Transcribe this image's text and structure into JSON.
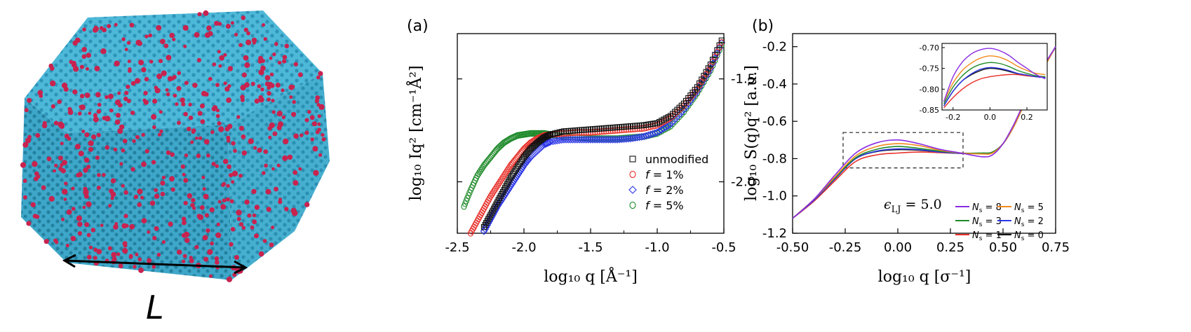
{
  "cube": {
    "length_label": "L",
    "colors": {
      "matrix": "#3aa9cc",
      "particle": "#c8234f"
    }
  },
  "chart_data": [
    {
      "panel_label": "(a)",
      "type": "scatter",
      "xlabel": "log₁₀ q  [Å⁻¹]",
      "ylabel": "log₁₀ Iq²  [cm⁻¹Å²]",
      "xlim": [
        -2.5,
        -0.5
      ],
      "ylim": [
        -2.25,
        -1.28
      ],
      "xticks": [
        -2.5,
        -2.0,
        -1.5,
        -1.0,
        -0.5
      ],
      "xtick_labels": [
        "-2.5",
        "-2.0",
        "-1.5",
        "-1.0",
        "-0.5"
      ],
      "yticks": [
        -2.0,
        -1.5
      ],
      "ytick_labels": [
        "-2.0",
        "-1.5"
      ],
      "legend_position": "bottom-right",
      "series": [
        {
          "name": "unmodified",
          "marker": "square",
          "color": "#111111",
          "x": [
            -2.3,
            -2.25,
            -2.2,
            -2.15,
            -2.1,
            -2.05,
            -2.0,
            -1.95,
            -1.9,
            -1.85,
            -1.8,
            -1.7,
            -1.6,
            -1.5,
            -1.4,
            -1.3,
            -1.2,
            -1.1,
            -1.0,
            -0.9,
            -0.8,
            -0.7,
            -0.6,
            -0.5
          ],
          "y": [
            -2.22,
            -2.16,
            -2.1,
            -2.04,
            -1.98,
            -1.93,
            -1.88,
            -1.84,
            -1.81,
            -1.785,
            -1.77,
            -1.755,
            -1.75,
            -1.745,
            -1.74,
            -1.735,
            -1.73,
            -1.725,
            -1.715,
            -1.68,
            -1.62,
            -1.54,
            -1.43,
            -1.29
          ]
        },
        {
          "name": "f = 1%",
          "label_prefix": "f",
          "label_suffix": " = 1%",
          "marker": "circle",
          "color": "#e8302a",
          "x": [
            -2.4,
            -2.35,
            -2.3,
            -2.25,
            -2.2,
            -2.15,
            -2.1,
            -2.05,
            -2.0,
            -1.95,
            -1.9,
            -1.85,
            -1.8,
            -1.7,
            -1.6,
            -1.5,
            -1.4,
            -1.3,
            -1.2,
            -1.1,
            -1.0,
            -0.9,
            -0.8,
            -0.7,
            -0.6,
            -0.5
          ],
          "y": [
            -2.25,
            -2.19,
            -2.13,
            -2.07,
            -2.02,
            -1.97,
            -1.92,
            -1.88,
            -1.84,
            -1.81,
            -1.79,
            -1.775,
            -1.77,
            -1.765,
            -1.76,
            -1.76,
            -1.755,
            -1.75,
            -1.745,
            -1.74,
            -1.725,
            -1.69,
            -1.63,
            -1.55,
            -1.44,
            -1.3
          ]
        },
        {
          "name": "f = 2%",
          "label_prefix": "f",
          "label_suffix": " = 2%",
          "marker": "diamond",
          "color": "#2b35e6",
          "x": [
            -2.3,
            -2.25,
            -2.2,
            -2.15,
            -2.1,
            -2.05,
            -2.0,
            -1.95,
            -1.9,
            -1.85,
            -1.8,
            -1.7,
            -1.6,
            -1.5,
            -1.4,
            -1.3,
            -1.2,
            -1.1,
            -1.0,
            -0.9,
            -0.8,
            -0.7,
            -0.6,
            -0.5
          ],
          "y": [
            -2.24,
            -2.18,
            -2.12,
            -2.07,
            -2.02,
            -1.97,
            -1.92,
            -1.88,
            -1.85,
            -1.82,
            -1.805,
            -1.795,
            -1.795,
            -1.795,
            -1.795,
            -1.795,
            -1.79,
            -1.78,
            -1.76,
            -1.72,
            -1.65,
            -1.56,
            -1.45,
            -1.3
          ]
        },
        {
          "name": "f = 5%",
          "label_prefix": "f",
          "label_suffix": " = 5%",
          "marker": "circle",
          "color": "#1f8a2a",
          "x": [
            -2.45,
            -2.4,
            -2.35,
            -2.3,
            -2.25,
            -2.2,
            -2.15,
            -2.1,
            -2.05,
            -2.0,
            -1.95,
            -1.9,
            -1.85,
            -1.8,
            -1.7,
            -1.6,
            -1.5,
            -1.4,
            -1.3,
            -1.2,
            -1.1,
            -1.0,
            -0.9,
            -0.8,
            -0.7,
            -0.6,
            -0.5
          ],
          "y": [
            -2.12,
            -2.04,
            -1.97,
            -1.92,
            -1.88,
            -1.84,
            -1.81,
            -1.79,
            -1.775,
            -1.77,
            -1.765,
            -1.765,
            -1.765,
            -1.77,
            -1.78,
            -1.785,
            -1.79,
            -1.79,
            -1.79,
            -1.785,
            -1.78,
            -1.765,
            -1.73,
            -1.66,
            -1.57,
            -1.46,
            -1.31
          ]
        }
      ]
    },
    {
      "panel_label": "(b)",
      "type": "line",
      "xlabel": "log₁₀ q  [σ⁻¹]",
      "ylabel": "log₁₀ S(q)q²  [a.u.]",
      "xlim": [
        -0.5,
        0.75
      ],
      "ylim": [
        -1.2,
        -0.13
      ],
      "xticks": [
        -0.5,
        -0.25,
        0.0,
        0.25,
        0.5,
        0.75
      ],
      "xtick_labels": [
        "-0.50",
        "-0.25",
        "0.00",
        "0.25",
        "0.50",
        "0.75"
      ],
      "yticks": [
        -1.2,
        -1.0,
        -0.8,
        -0.6,
        -0.4,
        -0.2
      ],
      "ytick_labels": [
        "-1.2",
        "-1.0",
        "-0.8",
        "-0.6",
        "-0.4",
        "-0.2"
      ],
      "annotation": {
        "symbol": "ϵ",
        "sub": "LJ",
        "rest": " = 5.0"
      },
      "highlight_box": {
        "x": [
          -0.26,
          0.31
        ],
        "y": [
          -0.85,
          -0.66
        ]
      },
      "legend_position": "bottom-right",
      "series": [
        {
          "name": "Ns = 8",
          "label_main": "N",
          "label_sub": "s",
          "label_value": " = 8",
          "color": "#8a2be2",
          "x": [
            -0.5,
            -0.4,
            -0.3,
            -0.2,
            -0.1,
            0.0,
            0.1,
            0.2,
            0.3,
            0.4,
            0.45,
            0.5,
            0.55,
            0.6,
            0.65,
            0.7,
            0.75
          ],
          "y": [
            -1.12,
            -1.02,
            -0.89,
            -0.77,
            -0.715,
            -0.7,
            -0.72,
            -0.75,
            -0.77,
            -0.79,
            -0.78,
            -0.72,
            -0.62,
            -0.5,
            -0.39,
            -0.29,
            -0.2
          ]
        },
        {
          "name": "Ns = 5",
          "label_main": "N",
          "label_sub": "s",
          "label_value": " = 5",
          "color": "#f28a1c",
          "x": [
            -0.5,
            -0.4,
            -0.3,
            -0.2,
            -0.1,
            0.0,
            0.1,
            0.2,
            0.3,
            0.4,
            0.45,
            0.5,
            0.55,
            0.6,
            0.65,
            0.7,
            0.75
          ],
          "y": [
            -1.12,
            -1.02,
            -0.9,
            -0.785,
            -0.735,
            -0.72,
            -0.73,
            -0.755,
            -0.77,
            -0.775,
            -0.77,
            -0.72,
            -0.63,
            -0.51,
            -0.4,
            -0.3,
            -0.2
          ]
        },
        {
          "name": "Ns = 3",
          "label_main": "N",
          "label_sub": "s",
          "label_value": " = 3",
          "color": "#1f8a2a",
          "x": [
            -0.5,
            -0.4,
            -0.3,
            -0.2,
            -0.1,
            0.0,
            0.1,
            0.2,
            0.3,
            0.4,
            0.45,
            0.5,
            0.55,
            0.6,
            0.65,
            0.7,
            0.75
          ],
          "y": [
            -1.12,
            -1.02,
            -0.905,
            -0.795,
            -0.75,
            -0.735,
            -0.745,
            -0.76,
            -0.77,
            -0.77,
            -0.765,
            -0.72,
            -0.63,
            -0.51,
            -0.4,
            -0.3,
            -0.2
          ]
        },
        {
          "name": "Ns = 2",
          "label_main": "N",
          "label_sub": "s",
          "label_value": " = 2",
          "color": "#2b35e6",
          "x": [
            -0.5,
            -0.4,
            -0.3,
            -0.2,
            -0.1,
            0.0,
            0.1,
            0.2,
            0.3,
            0.4,
            0.45,
            0.5,
            0.55,
            0.6,
            0.65,
            0.7,
            0.75
          ],
          "y": [
            -1.12,
            -1.025,
            -0.91,
            -0.8,
            -0.76,
            -0.748,
            -0.752,
            -0.765,
            -0.772,
            -0.772,
            -0.765,
            -0.72,
            -0.63,
            -0.51,
            -0.4,
            -0.3,
            -0.2
          ]
        },
        {
          "name": "Ns = 1",
          "label_main": "N",
          "label_sub": "s",
          "label_value": " = 1",
          "color": "#e8302a",
          "x": [
            -0.5,
            -0.4,
            -0.3,
            -0.2,
            -0.1,
            0.0,
            0.1,
            0.2,
            0.3,
            0.4,
            0.45,
            0.5,
            0.55,
            0.6,
            0.65,
            0.7,
            0.75
          ],
          "y": [
            -1.12,
            -1.03,
            -0.92,
            -0.815,
            -0.78,
            -0.77,
            -0.765,
            -0.768,
            -0.772,
            -0.772,
            -0.765,
            -0.72,
            -0.63,
            -0.51,
            -0.4,
            -0.3,
            -0.2
          ]
        },
        {
          "name": "Ns = 0",
          "label_main": "N",
          "label_sub": "s",
          "label_value": " = 0",
          "color": "#111111",
          "x": [
            -0.5,
            -0.4,
            -0.3,
            -0.2,
            -0.1,
            0.0,
            0.1,
            0.2,
            0.3,
            0.4,
            0.45,
            0.5,
            0.55,
            0.6,
            0.65,
            0.7,
            0.75
          ],
          "y": [
            -1.12,
            -1.025,
            -0.91,
            -0.8,
            -0.762,
            -0.752,
            -0.755,
            -0.765,
            -0.772,
            -0.772,
            -0.765,
            -0.72,
            -0.63,
            -0.51,
            -0.4,
            -0.3,
            -0.2
          ]
        }
      ]
    },
    {
      "panel_label": "(b) inset",
      "type": "line",
      "xlabel": "",
      "ylabel": "",
      "xlim": [
        -0.26,
        0.31
      ],
      "ylim": [
        -0.85,
        -0.69
      ],
      "xticks": [
        -0.2,
        0.0,
        0.2
      ],
      "xtick_labels": [
        "-0.2",
        "0.0",
        "0.2"
      ],
      "yticks": [
        -0.85,
        -0.8,
        -0.75,
        -0.7
      ],
      "ytick_labels": [
        "-0.85",
        "-0.80",
        "-0.75",
        "-0.70"
      ],
      "series": [
        {
          "color": "#8a2be2",
          "x": [
            -0.25,
            -0.2,
            -0.15,
            -0.1,
            -0.05,
            0.0,
            0.05,
            0.1,
            0.15,
            0.2,
            0.25,
            0.3
          ],
          "y": [
            -0.83,
            -0.77,
            -0.735,
            -0.715,
            -0.705,
            -0.702,
            -0.707,
            -0.718,
            -0.735,
            -0.75,
            -0.765,
            -0.775
          ]
        },
        {
          "color": "#f28a1c",
          "x": [
            -0.25,
            -0.2,
            -0.15,
            -0.1,
            -0.05,
            0.0,
            0.05,
            0.1,
            0.15,
            0.2,
            0.25,
            0.3
          ],
          "y": [
            -0.83,
            -0.785,
            -0.755,
            -0.737,
            -0.725,
            -0.72,
            -0.723,
            -0.732,
            -0.745,
            -0.755,
            -0.762,
            -0.765
          ]
        },
        {
          "color": "#1f8a2a",
          "x": [
            -0.25,
            -0.2,
            -0.15,
            -0.1,
            -0.05,
            0.0,
            0.05,
            0.1,
            0.15,
            0.2,
            0.25,
            0.3
          ],
          "y": [
            -0.835,
            -0.795,
            -0.768,
            -0.75,
            -0.74,
            -0.736,
            -0.738,
            -0.745,
            -0.755,
            -0.762,
            -0.768,
            -0.77
          ]
        },
        {
          "color": "#2b35e6",
          "x": [
            -0.25,
            -0.2,
            -0.15,
            -0.1,
            -0.05,
            0.0,
            0.05,
            0.1,
            0.15,
            0.2,
            0.25,
            0.3
          ],
          "y": [
            -0.84,
            -0.805,
            -0.78,
            -0.763,
            -0.752,
            -0.748,
            -0.75,
            -0.755,
            -0.762,
            -0.766,
            -0.77,
            -0.772
          ]
        },
        {
          "color": "#e8302a",
          "x": [
            -0.25,
            -0.2,
            -0.15,
            -0.1,
            -0.05,
            0.0,
            0.05,
            0.1,
            0.15,
            0.2,
            0.25,
            0.3
          ],
          "y": [
            -0.845,
            -0.82,
            -0.8,
            -0.785,
            -0.775,
            -0.77,
            -0.767,
            -0.765,
            -0.765,
            -0.768,
            -0.77,
            -0.772
          ]
        },
        {
          "color": "#111111",
          "x": [
            -0.25,
            -0.2,
            -0.15,
            -0.1,
            -0.05,
            0.0,
            0.05,
            0.1,
            0.15,
            0.2,
            0.25,
            0.3
          ],
          "y": [
            -0.84,
            -0.805,
            -0.78,
            -0.765,
            -0.755,
            -0.75,
            -0.752,
            -0.757,
            -0.763,
            -0.767,
            -0.77,
            -0.772
          ]
        }
      ]
    }
  ]
}
